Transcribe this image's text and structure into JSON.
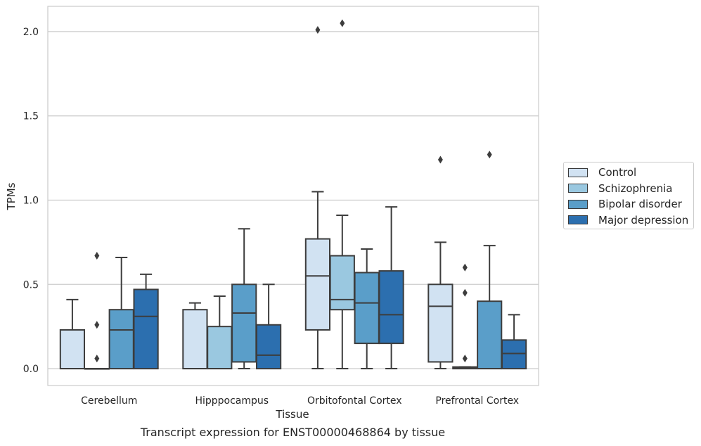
{
  "caption": "Transcript expression for ENST00000468864 by tissue",
  "chart_data": {
    "type": "box",
    "xlabel": "Tissue",
    "ylabel": "TPMs",
    "ylim": [
      -0.1,
      2.15
    ],
    "yticks": [
      "0.0",
      "0.5",
      "1.0",
      "1.5",
      "2.0"
    ],
    "grid": true,
    "legend_position": "right",
    "categories": [
      "Cerebellum",
      "Hipppocampus",
      "Orbitofontal Cortex",
      "Prefrontal Cortex"
    ],
    "series": [
      {
        "name": "Control",
        "color": "#d1e2f2",
        "boxes": [
          {
            "min": 0,
            "q1": 0,
            "median": 0,
            "q3": 0.23,
            "max": 0.41,
            "outliers": []
          },
          {
            "min": 0,
            "q1": 0,
            "median": 0,
            "q3": 0.35,
            "max": 0.39,
            "outliers": []
          },
          {
            "min": 0,
            "q1": 0.23,
            "median": 0.55,
            "q3": 0.77,
            "max": 1.05,
            "outliers": [
              2.01
            ]
          },
          {
            "min": 0,
            "q1": 0.04,
            "median": 0.37,
            "q3": 0.5,
            "max": 0.75,
            "outliers": [
              1.24
            ]
          }
        ]
      },
      {
        "name": "Schizophrenia",
        "color": "#9ac8e0",
        "boxes": [
          {
            "min": 0,
            "q1": 0,
            "median": 0,
            "q3": 0,
            "max": 0,
            "outliers": [
              0.26,
              0.06,
              0.67
            ]
          },
          {
            "min": 0,
            "q1": 0,
            "median": 0,
            "q3": 0.25,
            "max": 0.43,
            "outliers": []
          },
          {
            "min": 0,
            "q1": 0.35,
            "median": 0.41,
            "q3": 0.67,
            "max": 0.91,
            "outliers": [
              2.05
            ]
          },
          {
            "min": 0,
            "q1": 0,
            "median": 0.005,
            "q3": 0.01,
            "max": 0.01,
            "outliers": [
              0.06,
              0.45,
              0.6
            ]
          }
        ]
      },
      {
        "name": "Bipolar disorder",
        "color": "#5a9ec9",
        "boxes": [
          {
            "min": 0,
            "q1": 0,
            "median": 0.23,
            "q3": 0.35,
            "max": 0.66,
            "outliers": []
          },
          {
            "min": 0,
            "q1": 0.04,
            "median": 0.33,
            "q3": 0.5,
            "max": 0.83,
            "outliers": []
          },
          {
            "min": 0,
            "q1": 0.15,
            "median": 0.39,
            "q3": 0.57,
            "max": 0.71,
            "outliers": []
          },
          {
            "min": 0,
            "q1": 0,
            "median": 0,
            "q3": 0.4,
            "max": 0.73,
            "outliers": [
              1.27
            ]
          }
        ]
      },
      {
        "name": "Major depression",
        "color": "#2c6faf",
        "boxes": [
          {
            "min": 0,
            "q1": 0,
            "median": 0.31,
            "q3": 0.47,
            "max": 0.56,
            "outliers": []
          },
          {
            "min": 0,
            "q1": 0,
            "median": 0.08,
            "q3": 0.26,
            "max": 0.5,
            "outliers": []
          },
          {
            "min": 0,
            "q1": 0.15,
            "median": 0.32,
            "q3": 0.58,
            "max": 0.96,
            "outliers": []
          },
          {
            "min": 0,
            "q1": 0,
            "median": 0.09,
            "q3": 0.17,
            "max": 0.32,
            "outliers": []
          }
        ]
      }
    ]
  }
}
